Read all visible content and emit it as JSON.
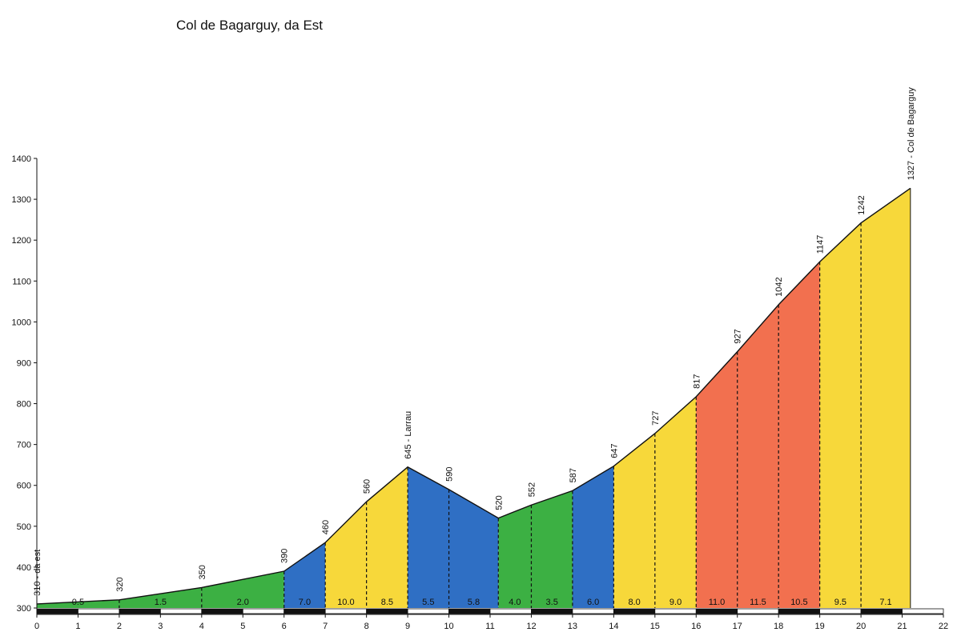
{
  "chart_data": {
    "type": "area",
    "title": "Col de Bagarguy, da Est",
    "xlabel": "",
    "ylabel": "",
    "xlim": [
      0,
      22
    ],
    "ylim": [
      300,
      1400
    ],
    "x_ticks": [
      0,
      1,
      2,
      3,
      4,
      5,
      6,
      7,
      8,
      9,
      10,
      11,
      12,
      13,
      14,
      15,
      16,
      17,
      18,
      19,
      20,
      21,
      22
    ],
    "y_ticks": [
      300,
      400,
      500,
      600,
      700,
      800,
      900,
      1000,
      1100,
      1200,
      1300,
      1400
    ],
    "grid": false,
    "profile": [
      {
        "km": 0,
        "alt": 310
      },
      {
        "km": 2,
        "alt": 320
      },
      {
        "km": 4,
        "alt": 350
      },
      {
        "km": 6,
        "alt": 390
      },
      {
        "km": 7,
        "alt": 460
      },
      {
        "km": 8,
        "alt": 560
      },
      {
        "km": 9,
        "alt": 645
      },
      {
        "km": 10,
        "alt": 590
      },
      {
        "km": 11.2,
        "alt": 520
      },
      {
        "km": 12,
        "alt": 552
      },
      {
        "km": 13,
        "alt": 587
      },
      {
        "km": 14,
        "alt": 647
      },
      {
        "km": 15,
        "alt": 727
      },
      {
        "km": 16,
        "alt": 817
      },
      {
        "km": 17,
        "alt": 927
      },
      {
        "km": 18,
        "alt": 1042
      },
      {
        "km": 19,
        "alt": 1147
      },
      {
        "km": 20,
        "alt": 1242
      },
      {
        "km": 21.2,
        "alt": 1327
      }
    ],
    "point_labels": [
      {
        "km": 0,
        "alt": 310,
        "text": "310 - da est"
      },
      {
        "km": 2,
        "alt": 320,
        "text": "320"
      },
      {
        "km": 4,
        "alt": 350,
        "text": "350"
      },
      {
        "km": 6,
        "alt": 390,
        "text": "390"
      },
      {
        "km": 7,
        "alt": 460,
        "text": "460"
      },
      {
        "km": 8,
        "alt": 560,
        "text": "560"
      },
      {
        "km": 9,
        "alt": 645,
        "text": "645 - Larrau"
      },
      {
        "km": 10,
        "alt": 590,
        "text": "590"
      },
      {
        "km": 11.2,
        "alt": 520,
        "text": "520"
      },
      {
        "km": 12,
        "alt": 552,
        "text": "552"
      },
      {
        "km": 13,
        "alt": 587,
        "text": "587"
      },
      {
        "km": 14,
        "alt": 647,
        "text": "647"
      },
      {
        "km": 15,
        "alt": 727,
        "text": "727"
      },
      {
        "km": 16,
        "alt": 817,
        "text": "817"
      },
      {
        "km": 17,
        "alt": 927,
        "text": "927"
      },
      {
        "km": 18,
        "alt": 1042,
        "text": "1042"
      },
      {
        "km": 19,
        "alt": 1147,
        "text": "1147"
      },
      {
        "km": 20,
        "alt": 1242,
        "text": "1242"
      },
      {
        "km": 21.2,
        "alt": 1327,
        "text": "1327 - Col de Bagarguy"
      }
    ],
    "segments": [
      {
        "from": 0,
        "to": 2,
        "gradient": "0.5",
        "color": "#3cb043"
      },
      {
        "from": 2,
        "to": 4,
        "gradient": "1.5",
        "color": "#3cb043"
      },
      {
        "from": 4,
        "to": 6,
        "gradient": "2.0",
        "color": "#3cb043"
      },
      {
        "from": 6,
        "to": 7,
        "gradient": "7.0",
        "color": "#2f6fc4"
      },
      {
        "from": 7,
        "to": 8,
        "gradient": "10.0",
        "color": "#f7d83a"
      },
      {
        "from": 8,
        "to": 9,
        "gradient": "8.5",
        "color": "#f7d83a"
      },
      {
        "from": 9,
        "to": 10,
        "gradient": "5.5",
        "color": "#2f6fc4"
      },
      {
        "from": 10,
        "to": 11.2,
        "gradient": "5.8",
        "color": "#2f6fc4"
      },
      {
        "from": 11.2,
        "to": 12,
        "gradient": "4.0",
        "color": "#3cb043"
      },
      {
        "from": 12,
        "to": 13,
        "gradient": "3.5",
        "color": "#3cb043"
      },
      {
        "from": 13,
        "to": 14,
        "gradient": "6.0",
        "color": "#2f6fc4"
      },
      {
        "from": 14,
        "to": 15,
        "gradient": "8.0",
        "color": "#f7d83a"
      },
      {
        "from": 15,
        "to": 16,
        "gradient": "9.0",
        "color": "#f7d83a"
      },
      {
        "from": 16,
        "to": 17,
        "gradient": "11.0",
        "color": "#f2704f"
      },
      {
        "from": 17,
        "to": 18,
        "gradient": "11.5",
        "color": "#f2704f"
      },
      {
        "from": 18,
        "to": 19,
        "gradient": "10.5",
        "color": "#f2704f"
      },
      {
        "from": 19,
        "to": 20,
        "gradient": "9.5",
        "color": "#f7d83a"
      },
      {
        "from": 20,
        "to": 21.2,
        "gradient": "7.1",
        "color": "#f7d83a"
      }
    ]
  }
}
